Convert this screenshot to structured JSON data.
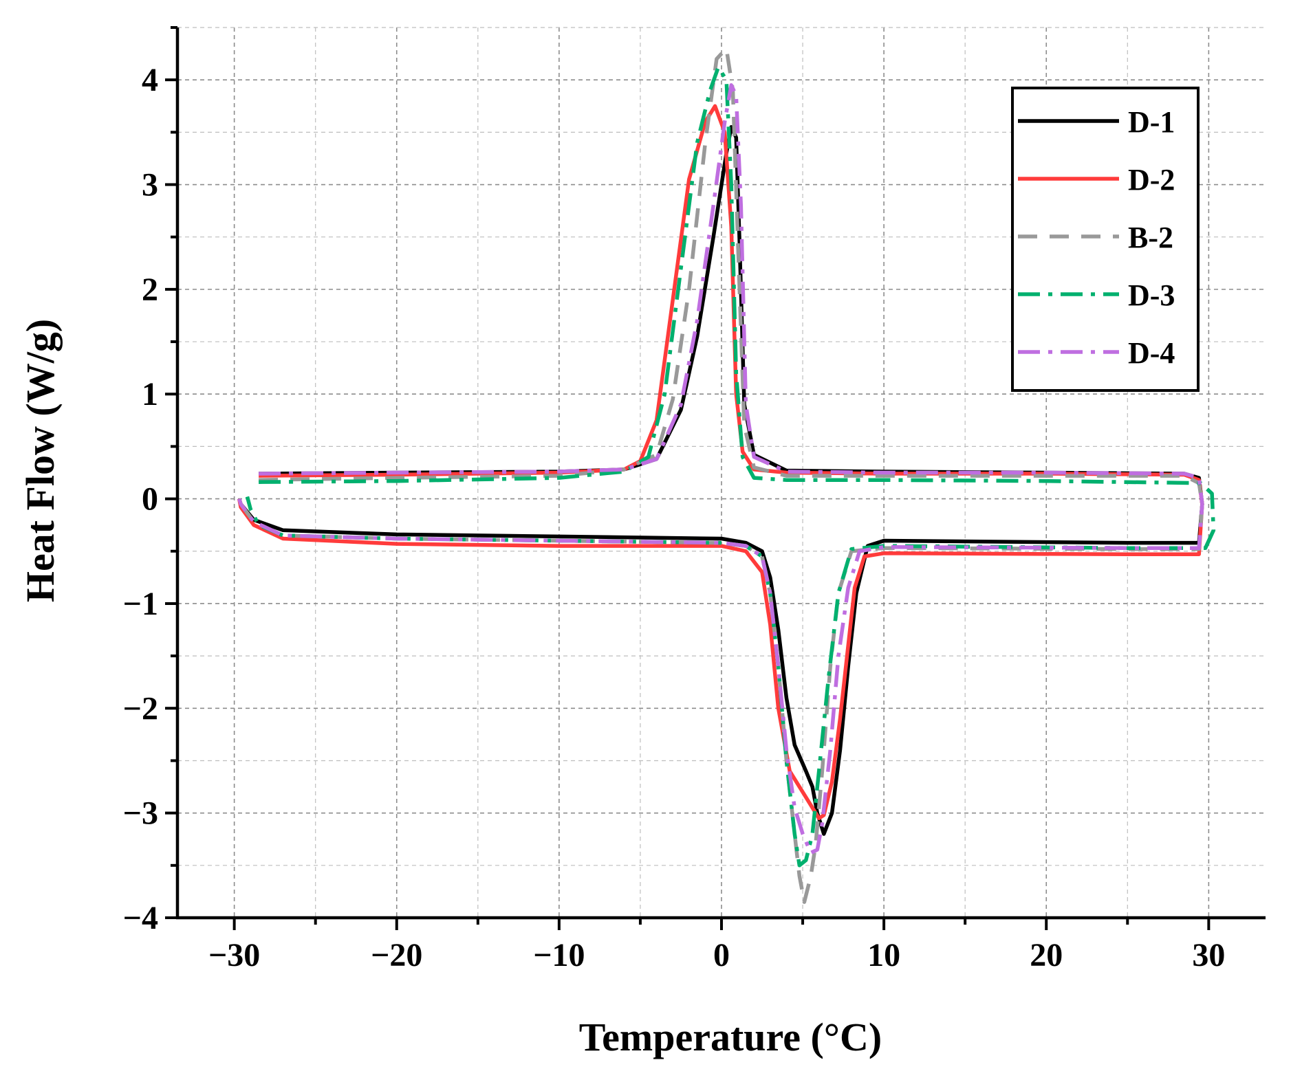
{
  "chart_data": {
    "type": "line",
    "xlabel": "Temperature (°C)",
    "ylabel": "Heat Flow (W/g)",
    "xlim": [
      -33.5,
      33.5
    ],
    "ylim": [
      -4,
      4.5
    ],
    "x_ticks": [
      -30,
      -20,
      -10,
      0,
      10,
      20,
      30
    ],
    "x_tick_labels": [
      "−30",
      "−20",
      "−10",
      "0",
      "10",
      "20",
      "30"
    ],
    "y_ticks": [
      -4,
      -3,
      -2,
      -1,
      0,
      1,
      2,
      3,
      4
    ],
    "y_tick_labels": [
      "−4",
      "−3",
      "−2",
      "−1",
      "0",
      "1",
      "2",
      "3",
      "4"
    ],
    "grid": true,
    "legend_position": "top-right",
    "series": [
      {
        "name": "D-1",
        "color": "#000000",
        "dash": "solid",
        "x": [
          -28.5,
          -20,
          -10,
          -6,
          -4,
          -2.5,
          -1.5,
          -0.5,
          0.3,
          0.6,
          0.9,
          1.1,
          1.4,
          2,
          4,
          10,
          20,
          28.5,
          29.4,
          29.6,
          29.4,
          25,
          10,
          9,
          8.3,
          7.8,
          7.3,
          6.8,
          6.3,
          5.9,
          5.6,
          5.2,
          4.5,
          4,
          3.5,
          3,
          2.5,
          1.5,
          0,
          -10,
          -20,
          -27,
          -28.8,
          -29.6,
          -29.7
        ],
        "y": [
          0.24,
          0.25,
          0.26,
          0.28,
          0.38,
          0.85,
          1.55,
          2.5,
          3.3,
          3.55,
          3.45,
          2.5,
          0.9,
          0.42,
          0.27,
          0.26,
          0.25,
          0.24,
          0.2,
          -0.05,
          -0.42,
          -0.42,
          -0.4,
          -0.45,
          -0.9,
          -1.6,
          -2.4,
          -3.0,
          -3.2,
          -3.0,
          -2.75,
          -2.6,
          -2.35,
          -1.9,
          -1.25,
          -0.75,
          -0.5,
          -0.42,
          -0.38,
          -0.36,
          -0.34,
          -0.3,
          -0.2,
          -0.05,
          0.0
        ]
      },
      {
        "name": "D-2",
        "color": "#ff3b3b",
        "dash": "solid",
        "x": [
          -28.5,
          -20,
          -10,
          -6,
          -5,
          -4,
          -3,
          -2,
          -1,
          -0.4,
          0.2,
          0.6,
          0.9,
          1.3,
          2,
          4,
          10,
          20,
          28.5,
          29.4,
          29.6,
          29.4,
          25,
          10,
          8.8,
          8.2,
          7.8,
          7.3,
          6.8,
          6.3,
          6,
          5.6,
          5,
          4.2,
          3.5,
          3,
          2.5,
          1.5,
          0,
          -10,
          -20,
          -27,
          -28.8,
          -29.6,
          -29.7
        ],
        "y": [
          0.22,
          0.23,
          0.25,
          0.28,
          0.36,
          0.75,
          1.9,
          3.05,
          3.6,
          3.75,
          3.5,
          2.6,
          1.0,
          0.45,
          0.28,
          0.25,
          0.24,
          0.24,
          0.23,
          0.18,
          -0.05,
          -0.53,
          -0.53,
          -0.52,
          -0.55,
          -0.85,
          -1.4,
          -2.1,
          -2.7,
          -3.02,
          -3.05,
          -2.95,
          -2.8,
          -2.6,
          -2.0,
          -1.2,
          -0.7,
          -0.5,
          -0.45,
          -0.45,
          -0.43,
          -0.38,
          -0.25,
          -0.08,
          0.0
        ]
      },
      {
        "name": "B-2",
        "color": "#999999",
        "dash": "28 18",
        "x": [
          -28.5,
          -20,
          -10,
          -6,
          -4,
          -3,
          -2,
          -1,
          -0.3,
          0.3,
          0.7,
          1.0,
          1.4,
          2,
          4,
          10,
          20,
          28.5,
          29.4,
          29.6,
          29.4,
          25,
          10,
          8,
          7.2,
          6.7,
          6.2,
          5.8,
          5.5,
          5.1,
          4.8,
          4.5,
          4.0,
          3.5,
          3,
          2.5,
          1.5,
          0,
          -10,
          -20,
          -27,
          -28.8,
          -29.6,
          -29.7
        ],
        "y": [
          0.18,
          0.2,
          0.22,
          0.28,
          0.42,
          0.95,
          2.0,
          3.4,
          4.2,
          4.3,
          3.9,
          2.5,
          0.7,
          0.3,
          0.22,
          0.22,
          0.22,
          0.22,
          0.15,
          -0.05,
          -0.48,
          -0.48,
          -0.47,
          -0.5,
          -0.9,
          -1.6,
          -2.6,
          -3.3,
          -3.6,
          -3.85,
          -3.6,
          -3.2,
          -2.5,
          -1.6,
          -0.9,
          -0.55,
          -0.45,
          -0.42,
          -0.4,
          -0.38,
          -0.35,
          -0.22,
          -0.05,
          0.0
        ]
      },
      {
        "name": "D-3",
        "color": "#00b06e",
        "dash": "32 12 6 12",
        "x": [
          -28.5,
          -20,
          -10,
          -6,
          -4.5,
          -3.5,
          -2.5,
          -1.5,
          -0.7,
          -0.2,
          0.3,
          0.6,
          0.9,
          1.3,
          2,
          4,
          10,
          20,
          29.5,
          30.2,
          30.3,
          29.8,
          25,
          10,
          8,
          7.2,
          6.6,
          6,
          5.6,
          5.2,
          4.8,
          4.5,
          4.0,
          3.5,
          3,
          2.5,
          1.5,
          0,
          -10,
          -20,
          -27,
          -28.5,
          -29.0,
          -29.2
        ],
        "y": [
          0.16,
          0.17,
          0.2,
          0.26,
          0.4,
          1.0,
          2.2,
          3.4,
          3.9,
          4.12,
          4.0,
          3.0,
          1.2,
          0.4,
          0.2,
          0.18,
          0.18,
          0.17,
          0.15,
          0.05,
          -0.3,
          -0.47,
          -0.47,
          -0.45,
          -0.48,
          -0.9,
          -1.7,
          -2.6,
          -3.2,
          -3.45,
          -3.5,
          -3.2,
          -2.5,
          -1.6,
          -0.9,
          -0.55,
          -0.45,
          -0.42,
          -0.4,
          -0.38,
          -0.35,
          -0.25,
          -0.1,
          0.02
        ]
      },
      {
        "name": "D-4",
        "color": "#bf6ee0",
        "dash": "32 12 6 12",
        "x": [
          -28.5,
          -20,
          -10,
          -6,
          -4,
          -2.5,
          -1.5,
          -0.5,
          0.2,
          0.6,
          0.9,
          1.2,
          1.5,
          2,
          4,
          10,
          20,
          28.5,
          29.4,
          29.6,
          29.4,
          25,
          10,
          8.5,
          7.8,
          7.2,
          6.7,
          6.2,
          5.9,
          5.5,
          5,
          4.5,
          4.0,
          3.5,
          3,
          2.5,
          1.5,
          0,
          -10,
          -20,
          -27,
          -28.8,
          -29.6,
          -29.7
        ],
        "y": [
          0.24,
          0.25,
          0.26,
          0.28,
          0.38,
          0.9,
          1.7,
          2.8,
          3.6,
          3.95,
          3.85,
          2.8,
          0.9,
          0.4,
          0.26,
          0.25,
          0.25,
          0.24,
          0.2,
          -0.05,
          -0.47,
          -0.47,
          -0.46,
          -0.5,
          -0.85,
          -1.5,
          -2.4,
          -3.1,
          -3.35,
          -3.38,
          -3.2,
          -2.95,
          -2.4,
          -1.6,
          -0.9,
          -0.55,
          -0.45,
          -0.42,
          -0.4,
          -0.38,
          -0.35,
          -0.22,
          -0.05,
          0.0
        ]
      }
    ]
  }
}
